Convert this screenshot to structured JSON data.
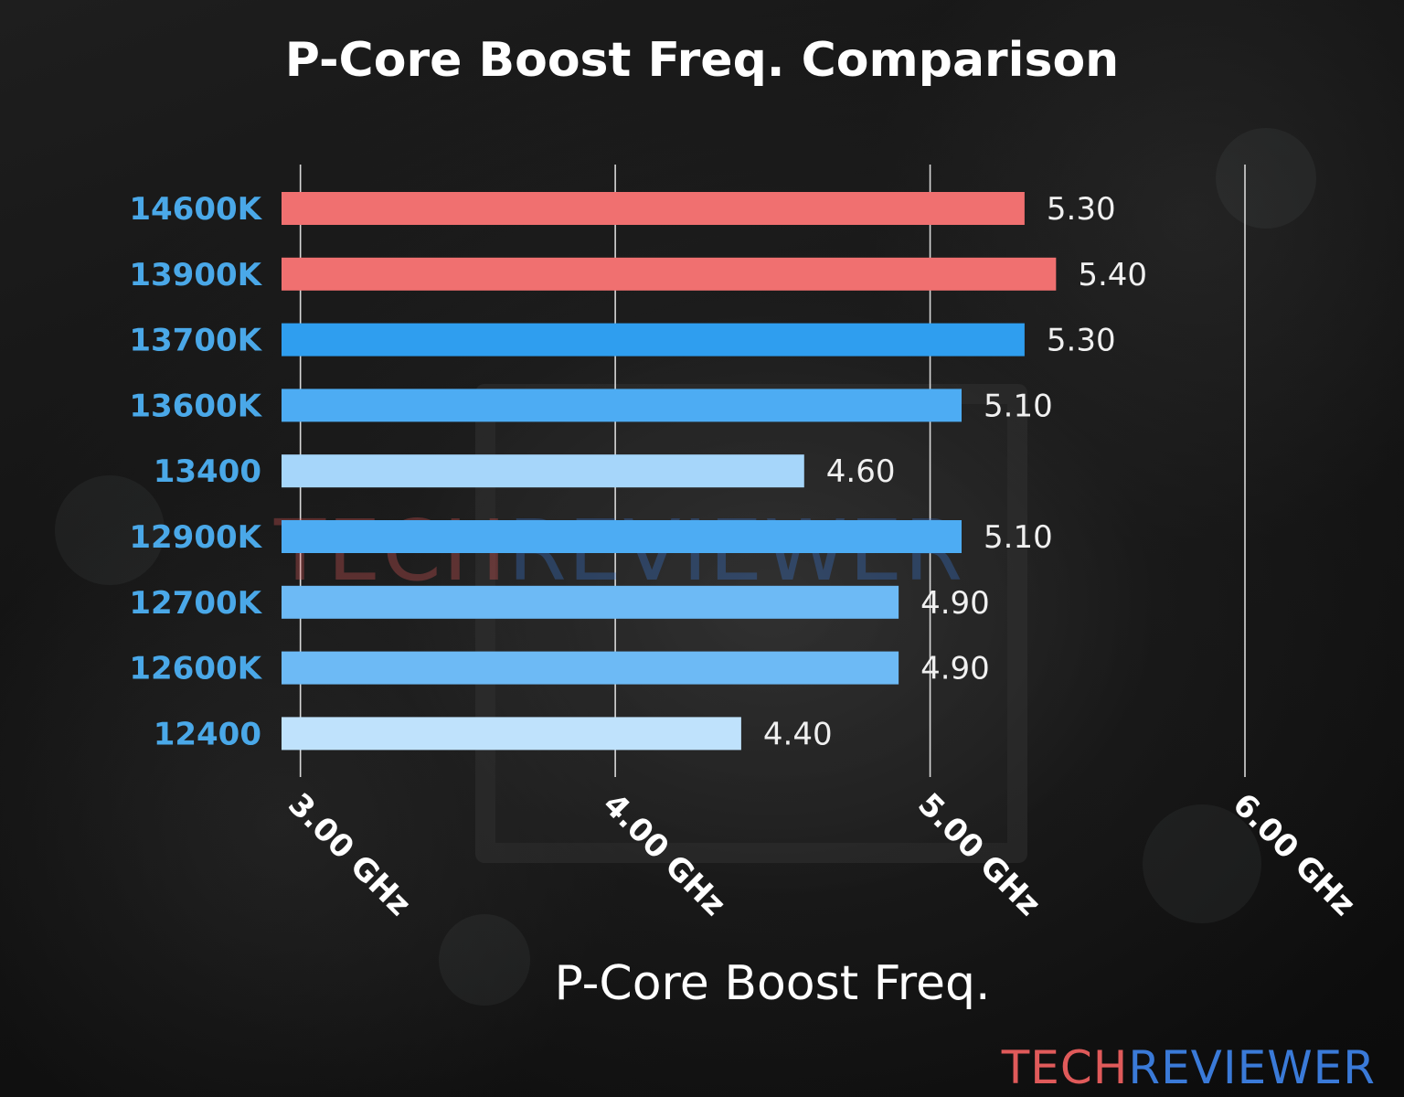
{
  "colors": {
    "red_bar": "#f07070",
    "blue_dark": "#2f9eef",
    "blue_mid": "#4dacf3",
    "blue_light": "#6dbaf5",
    "blue_pale": "#a6d6fa",
    "blue_palest": "#bfe2fc",
    "category_label": "#4aa8e8",
    "watermark_red": "#e05a5a",
    "watermark_blue": "#3a7ad8"
  },
  "watermark": {
    "part1": "TECH",
    "part2": "REVIEWER"
  },
  "chart_data": {
    "type": "bar",
    "orientation": "horizontal",
    "title": "P-Core Boost Freq. Comparison",
    "xlabel": "P-Core Boost Freq.",
    "ylabel": "",
    "categories": [
      "14600K",
      "13900K",
      "13700K",
      "13600K",
      "13400",
      "12900K",
      "12700K",
      "12600K",
      "12400"
    ],
    "values": [
      5.3,
      5.4,
      5.3,
      5.1,
      4.6,
      5.1,
      4.9,
      4.9,
      4.4
    ],
    "value_labels": [
      "5.30",
      "5.40",
      "5.30",
      "5.10",
      "4.60",
      "5.10",
      "4.90",
      "4.90",
      "4.40"
    ],
    "bar_colors": [
      "#f07070",
      "#f07070",
      "#2f9eef",
      "#4dacf3",
      "#a6d6fa",
      "#4dacf3",
      "#6dbaf5",
      "#6dbaf5",
      "#bfe2fc"
    ],
    "xlim": [
      2.94,
      6.0
    ],
    "xticks": [
      3.0,
      4.0,
      5.0,
      6.0
    ],
    "xtick_labels": [
      "3.00 GHz",
      "4.00 GHz",
      "5.00 GHz",
      "6.00 GHz"
    ],
    "grid": true
  }
}
